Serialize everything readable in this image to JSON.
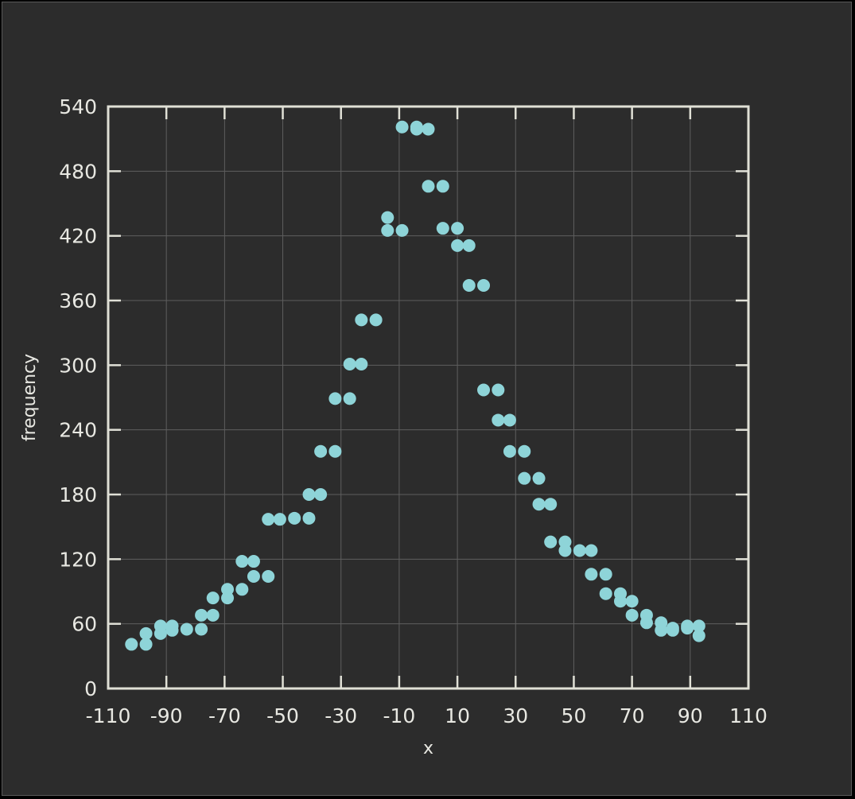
{
  "chart_data": {
    "type": "scatter",
    "title": "",
    "xlabel": "x",
    "ylabel": "frequency",
    "xlim": [
      -110,
      110
    ],
    "ylim": [
      0,
      540
    ],
    "xticks": [
      -110,
      -90,
      -70,
      -50,
      -30,
      -10,
      10,
      30,
      50,
      70,
      90,
      110
    ],
    "yticks": [
      0,
      60,
      120,
      180,
      240,
      300,
      360,
      420,
      480,
      540
    ],
    "grid": true,
    "colors": {
      "background": "#2c2c2c",
      "axes": "#e0e0d6",
      "grid": "#5e5e5e",
      "marker": "#8ed4d8"
    },
    "series": [
      {
        "x": [
          -102,
          -97,
          -97,
          -92,
          -92,
          -88,
          -88,
          -83,
          -78,
          -78,
          -74,
          -74,
          -69,
          -69,
          -64,
          -64,
          -60,
          -60,
          -55,
          -55,
          -51,
          -46,
          -41,
          -41,
          -37,
          -37,
          -32,
          -32,
          -27,
          -27,
          -23,
          -23,
          -18,
          -14,
          -14,
          -9,
          -9,
          -4,
          -4,
          0,
          0,
          5,
          5,
          10,
          10,
          14,
          14,
          19,
          19,
          24,
          24,
          28,
          28,
          33,
          33,
          38,
          38,
          42,
          42,
          47,
          47,
          52,
          56,
          56,
          61,
          61,
          66,
          66,
          70,
          70,
          75,
          75,
          80,
          80,
          84,
          84,
          89,
          89,
          93,
          93
        ],
        "y": [
          41,
          41,
          51,
          51,
          58,
          54,
          58,
          55,
          55,
          68,
          68,
          84,
          84,
          92,
          92,
          118,
          104,
          118,
          104,
          157,
          157,
          158,
          158,
          180,
          180,
          220,
          220,
          269,
          269,
          301,
          301,
          342,
          342,
          437,
          425,
          425,
          521,
          521,
          519,
          519,
          466,
          466,
          427,
          427,
          411,
          411,
          374,
          374,
          277,
          277,
          249,
          249,
          220,
          220,
          195,
          195,
          171,
          171,
          136,
          136,
          128,
          128,
          128,
          106,
          106,
          88,
          88,
          81,
          81,
          68,
          68,
          61,
          61,
          54,
          54,
          56,
          56,
          58,
          58,
          49
        ]
      }
    ]
  }
}
